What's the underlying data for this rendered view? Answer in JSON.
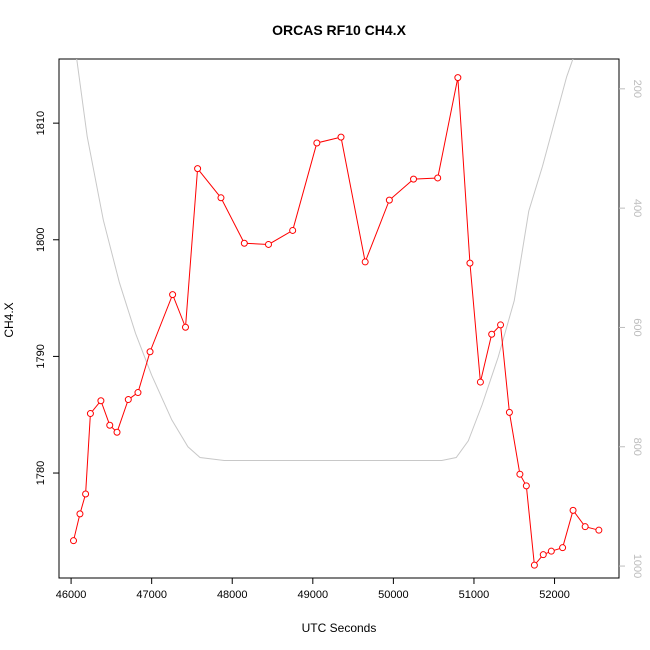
{
  "chart_data": {
    "type": "line",
    "title": "ORCAS RF10 CH4.X",
    "xlabel": "UTC Seconds",
    "ylabel": "CH4.X",
    "xlim": [
      45850,
      52800
    ],
    "ylim": [
      1771,
      1815.5
    ],
    "xticks": [
      46000,
      47000,
      48000,
      49000,
      50000,
      51000,
      52000
    ],
    "yticks": [
      1780,
      1790,
      1800,
      1810
    ],
    "right_axis": {
      "label": "",
      "ticks": [
        200,
        400,
        600,
        800,
        1000
      ],
      "lim": [
        150,
        1020
      ],
      "reversed": true,
      "color": "#bdbdbd"
    },
    "grid": false,
    "series": [
      {
        "color": "#ff0000",
        "style": "line+open-circles",
        "x": [
          46030,
          46110,
          46180,
          46240,
          46370,
          46480,
          46570,
          46710,
          46830,
          46980,
          47260,
          47420,
          47570,
          47860,
          48150,
          48450,
          48750,
          49050,
          49350,
          49650,
          49950,
          50250,
          50550,
          50800,
          50950,
          51080,
          51220,
          51330,
          51440,
          51570,
          51650,
          51750,
          51860,
          51960,
          52100,
          52230,
          52380,
          52550
        ],
        "y": [
          1774.2,
          1776.5,
          1778.2,
          1785.1,
          1786.2,
          1784.1,
          1783.5,
          1786.3,
          1786.9,
          1790.4,
          1795.3,
          1792.5,
          1806.1,
          1803.6,
          1799.7,
          1799.6,
          1800.8,
          1808.3,
          1808.8,
          1798.1,
          1803.4,
          1805.2,
          1805.3,
          1813.9,
          1798.0,
          1787.8,
          1791.9,
          1792.7,
          1785.2,
          1779.9,
          1778.9,
          1772.1,
          1773.0,
          1773.3,
          1773.6,
          1776.8,
          1775.4,
          1775.1
        ]
      },
      {
        "color": "#c8c8c8",
        "style": "line",
        "axis": "right",
        "x": [
          46000,
          46200,
          46400,
          46600,
          46800,
          47000,
          47250,
          47450,
          47600,
          47900,
          48500,
          49500,
          50200,
          50600,
          50780,
          50930,
          51100,
          51300,
          51500,
          51680,
          51850,
          52000,
          52150,
          52280
        ],
        "y": [
          80,
          280,
          420,
          525,
          610,
          680,
          755,
          800,
          818,
          823,
          823,
          823,
          823,
          823,
          818,
          790,
          730,
          650,
          555,
          405,
          330,
          255,
          180,
          130
        ]
      }
    ]
  }
}
